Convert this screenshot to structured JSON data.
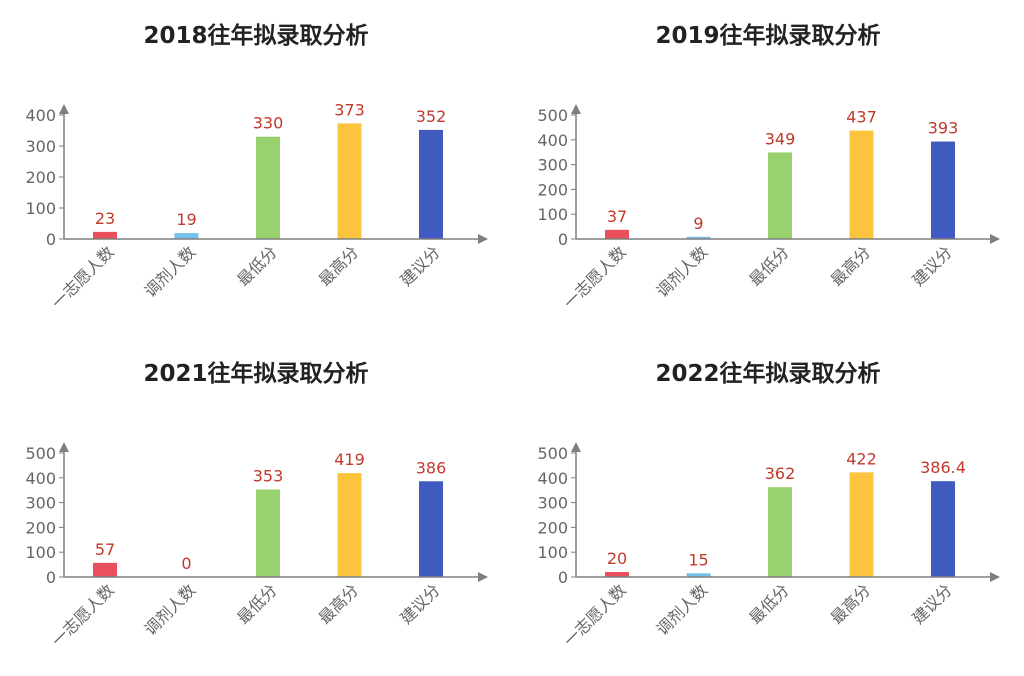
{
  "colors": {
    "bar_colors": [
      "#e8505b",
      "#74c0ec",
      "#97d26e",
      "#fcc43c",
      "#3f5bc0"
    ],
    "axis": "#7f7f7f",
    "tick_text": "#666666",
    "value_label": "#c0392b"
  },
  "chart_data": [
    {
      "type": "bar",
      "title": "2018往年拟录取分析",
      "categories": [
        "一志愿人数",
        "调剂人数",
        "最低分",
        "最高分",
        "建议分"
      ],
      "values": [
        23,
        19,
        330,
        373,
        352
      ],
      "value_labels": [
        "23",
        "19",
        "330",
        "373",
        "352"
      ],
      "ylim": [
        0,
        400
      ],
      "yticks": [
        0,
        100,
        200,
        300,
        400
      ],
      "ytick_labels": [
        "0",
        "100",
        "200",
        "300",
        "400"
      ]
    },
    {
      "type": "bar",
      "title": "2019往年拟录取分析",
      "categories": [
        "一志愿人数",
        "调剂人数",
        "最低分",
        "最高分",
        "建议分"
      ],
      "values": [
        37,
        9,
        349,
        437,
        393
      ],
      "value_labels": [
        "37",
        "9",
        "349",
        "437",
        "393"
      ],
      "ylim": [
        0,
        500
      ],
      "yticks": [
        0,
        100,
        200,
        300,
        400,
        500
      ],
      "ytick_labels": [
        "0",
        "100",
        "200",
        "300",
        "400",
        "500"
      ]
    },
    {
      "type": "bar",
      "title": "2021往年拟录取分析",
      "categories": [
        "一志愿人数",
        "调剂人数",
        "最低分",
        "最高分",
        "建议分"
      ],
      "values": [
        57,
        0,
        353,
        419,
        386
      ],
      "value_labels": [
        "57",
        "0",
        "353",
        "419",
        "386"
      ],
      "ylim": [
        0,
        500
      ],
      "yticks": [
        0,
        100,
        200,
        300,
        400,
        500
      ],
      "ytick_labels": [
        "0",
        "100",
        "200",
        "300",
        "400",
        "500"
      ]
    },
    {
      "type": "bar",
      "title": "2022往年拟录取分析",
      "categories": [
        "一志愿人数",
        "调剂人数",
        "最低分",
        "最高分",
        "建议分"
      ],
      "values": [
        20,
        15,
        362,
        422,
        386.4
      ],
      "value_labels": [
        "20",
        "15",
        "362",
        "422",
        "386.4"
      ],
      "ylim": [
        0,
        500
      ],
      "yticks": [
        0,
        100,
        200,
        300,
        400,
        500
      ],
      "ytick_labels": [
        "0",
        "100",
        "200",
        "300",
        "400",
        "500"
      ]
    }
  ]
}
